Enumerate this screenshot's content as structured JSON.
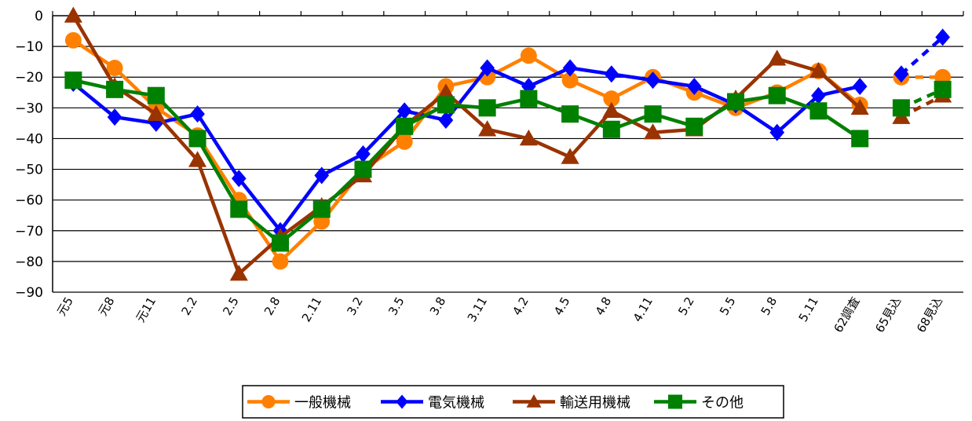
{
  "chart_data": {
    "type": "line",
    "categories": [
      "元5",
      "元8",
      "元11",
      "2.2",
      "2.5",
      "2.8",
      "2.11",
      "3.2",
      "3.5",
      "3.8",
      "3.11",
      "4.2",
      "4.5",
      "4.8",
      "4.11",
      "5.2",
      "5.5",
      "5.8",
      "5.11",
      "62調査",
      "65見込",
      "68見込"
    ],
    "ylim": [
      -90,
      0
    ],
    "yticks": [
      0,
      -10,
      -20,
      -30,
      -40,
      -50,
      -60,
      -70,
      -80,
      -90
    ],
    "grid": true,
    "legend": "bottom",
    "series": [
      {
        "name": "一般機械",
        "color": "#FF8000",
        "marker": "circle",
        "values": [
          -8,
          -17,
          -30,
          -39,
          -60,
          -80,
          -67,
          -50,
          -41,
          -23,
          -20,
          -13,
          -21,
          -27,
          -20,
          -25,
          -30,
          -25,
          -18,
          -29,
          -20,
          -20
        ]
      },
      {
        "name": "電気機械",
        "color": "#0000FF",
        "marker": "diamond",
        "values": [
          -22,
          -33,
          -35,
          -32,
          -53,
          -70,
          -52,
          -45,
          -31,
          -34,
          -17,
          -23,
          -17,
          -19,
          -21,
          -23,
          -29,
          -38,
          -26,
          -23,
          -19,
          -7
        ]
      },
      {
        "name": "輸送用機械",
        "color": "#993300",
        "marker": "triangle",
        "values": [
          0,
          -23,
          -32,
          -47,
          -84,
          -72,
          -62,
          -52,
          -36,
          -25,
          -37,
          -40,
          -46,
          -31,
          -38,
          -37,
          -27,
          -14,
          -18,
          -30,
          -33,
          -26
        ]
      },
      {
        "name": "その他",
        "color": "#008000",
        "marker": "square",
        "values": [
          -21,
          -24,
          -26,
          -40,
          -63,
          -74,
          -63,
          -50,
          -36,
          -29,
          -30,
          -27,
          -32,
          -37,
          -32,
          -36,
          -28,
          -26,
          -31,
          -40,
          -30,
          -24
        ]
      }
    ]
  }
}
